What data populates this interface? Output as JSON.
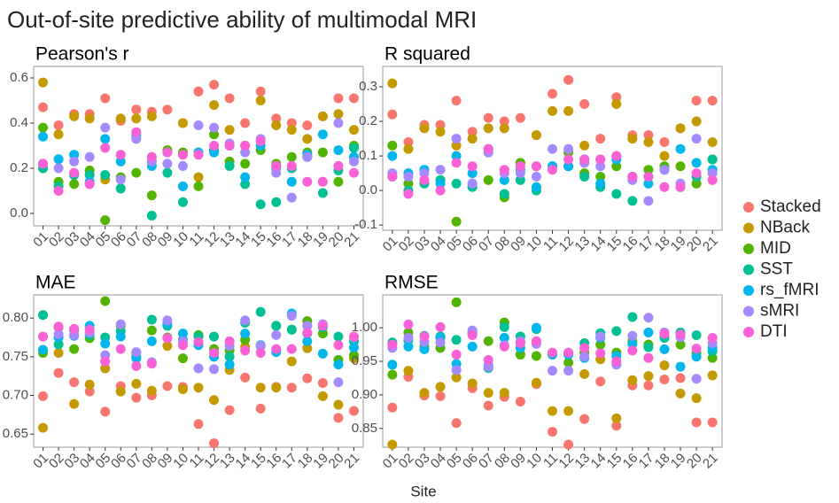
{
  "title": "Out-of-site predictive ability of multimodal MRI",
  "xlabel": "Site",
  "chart_data": [
    {
      "type": "scatter",
      "title": "Pearson's r",
      "categories": [
        "01",
        "02",
        "03",
        "04",
        "05",
        "06",
        "07",
        "08",
        "09",
        "10",
        "11",
        "12",
        "13",
        "14",
        "15",
        "16",
        "17",
        "18",
        "19",
        "20",
        "21"
      ],
      "ylim": [
        -0.055,
        0.651
      ],
      "yticks": [
        {
          "value": 0,
          "label": "0.0"
        },
        0.2,
        0.4,
        0.6
      ],
      "series": [
        {
          "name": "Stacked",
          "color": "#f8766d",
          "values": [
            0.47,
            0.39,
            0.44,
            0.44,
            0.51,
            0.41,
            0.46,
            0.45,
            0.46,
            0.4,
            0.54,
            0.57,
            0.51,
            0.4,
            0.54,
            0.42,
            0.4,
            0.39,
            0.43,
            0.51,
            0.51
          ]
        },
        {
          "name": "NBack",
          "color": "#c49a00",
          "values": [
            0.58,
            0.35,
            0.43,
            0.42,
            0.15,
            0.42,
            0.42,
            0.43,
            0.28,
            0.4,
            0.16,
            0.48,
            0.37,
            0.3,
            0.5,
            0.39,
            0.37,
            0.33,
            0.43,
            0.44,
            0.37
          ]
        },
        {
          "name": "MID",
          "color": "#53b400",
          "values": [
            0.38,
            0.14,
            0.13,
            0.19,
            -0.03,
            0.16,
            0.18,
            0.08,
            0.28,
            0.27,
            0.12,
            0.35,
            0.23,
            0.22,
            0.28,
            0.22,
            0.25,
            0.27,
            0.27,
            0.14,
            0.3
          ]
        },
        {
          "name": "SST",
          "color": "#00c094",
          "values": [
            0.2,
            0.12,
            0.17,
            0.17,
            0.17,
            0.11,
            0.34,
            -0.01,
            0.18,
            0.05,
            0.27,
            0.28,
            0.21,
            0.13,
            0.04,
            0.05,
            0.2,
            0.25,
            0.09,
            0.19,
            0.29
          ]
        },
        {
          "name": "rs_fMRI",
          "color": "#00b6eb",
          "values": [
            0.34,
            0.24,
            0.26,
            0.14,
            0.33,
            0.23,
            0.35,
            0.21,
            0.27,
            0.12,
            0.27,
            0.27,
            0.3,
            0.16,
            0.3,
            0.2,
            0.14,
            0.26,
            0.35,
            0.28,
            0.25
          ]
        },
        {
          "name": "sMRI",
          "color": "#a58aff",
          "values": [
            0.22,
            0.2,
            0.23,
            0.25,
            0.38,
            0.15,
            0.33,
            0.23,
            0.22,
            0.21,
            0.39,
            0.38,
            0.31,
            0.27,
            0.33,
            0.18,
            0.07,
            0.25,
            0.14,
            0.4,
            0.23
          ]
        },
        {
          "name": "DTI",
          "color": "#fb61d7",
          "values": [
            0.22,
            0.1,
            0.18,
            0.13,
            0.29,
            0.26,
            0.36,
            0.25,
            0.27,
            0.26,
            0.26,
            0.3,
            0.3,
            0.3,
            0.32,
            0.21,
            0.21,
            0.14,
            0.14,
            0.21,
            0.18
          ]
        }
      ]
    },
    {
      "type": "scatter",
      "title": "R squared",
      "categories": [
        "01",
        "02",
        "03",
        "04",
        "05",
        "06",
        "07",
        "08",
        "09",
        "10",
        "11",
        "12",
        "13",
        "14",
        "15",
        "16",
        "17",
        "18",
        "19",
        "20",
        "21"
      ],
      "ylim": [
        -0.115,
        0.359
      ],
      "yticks": [
        -0.1,
        {
          "value": 0,
          "label": "0.0"
        },
        0.1,
        0.2,
        0.3
      ],
      "series": [
        {
          "name": "Stacked",
          "color": "#f8766d",
          "values": [
            0.22,
            0.14,
            0.19,
            0.19,
            0.26,
            0.17,
            0.21,
            0.2,
            0.21,
            0.16,
            0.28,
            0.32,
            0.25,
            0.15,
            0.27,
            0.16,
            0.16,
            0.14,
            0.18,
            0.26,
            0.26
          ]
        },
        {
          "name": "NBack",
          "color": "#c49a00",
          "values": [
            0.31,
            0.12,
            0.18,
            0.17,
            0.13,
            0.15,
            0.18,
            0.18,
            0.08,
            0.16,
            0.23,
            0.23,
            0.13,
            0.09,
            0.25,
            0.15,
            0.14,
            0.1,
            0.18,
            0.2,
            0.14
          ]
        },
        {
          "name": "MID",
          "color": "#53b400",
          "values": [
            0.13,
            0.02,
            0.03,
            0.03,
            -0.09,
            0.02,
            0.03,
            -0.02,
            0.08,
            0.07,
            0.07,
            0.11,
            0.05,
            0.04,
            0.07,
            0.04,
            0.06,
            0.07,
            0.07,
            0.02,
            0.09
          ]
        },
        {
          "name": "SST",
          "color": "#00c094",
          "values": [
            0.04,
            0.0,
            0.02,
            0.03,
            0.02,
            0.01,
            0.11,
            -0.01,
            0.03,
            0.0,
            0.07,
            0.07,
            0.04,
            0.01,
            -0.01,
            -0.03,
            0.04,
            0.06,
            0.01,
            0.04,
            0.09
          ]
        },
        {
          "name": "rs_fMRI",
          "color": "#00b6eb",
          "values": [
            0.1,
            0.05,
            0.06,
            0.02,
            0.1,
            0.05,
            0.12,
            0.03,
            0.06,
            0.01,
            0.07,
            0.07,
            0.09,
            0.02,
            0.09,
            0.04,
            0.02,
            0.06,
            0.12,
            0.08,
            0.06
          ]
        },
        {
          "name": "sMRI",
          "color": "#a58aff",
          "values": [
            0.05,
            0.04,
            0.05,
            0.06,
            0.15,
            0.02,
            0.11,
            0.05,
            0.05,
            0.04,
            0.12,
            0.12,
            0.08,
            0.07,
            0.1,
            0.03,
            -0.03,
            0.06,
            0.02,
            0.15,
            0.05
          ]
        },
        {
          "name": "DTI",
          "color": "#fb61d7",
          "values": [
            0.04,
            -0.01,
            0.03,
            0.0,
            0.08,
            0.07,
            0.12,
            0.06,
            0.07,
            0.07,
            0.06,
            0.09,
            0.09,
            0.09,
            0.1,
            0.04,
            0.04,
            0.01,
            0.01,
            0.05,
            0.03
          ]
        }
      ]
    },
    {
      "type": "scatter",
      "title": "MAE",
      "categories": [
        "01",
        "02",
        "03",
        "04",
        "05",
        "06",
        "07",
        "08",
        "09",
        "10",
        "11",
        "12",
        "13",
        "14",
        "15",
        "16",
        "17",
        "18",
        "19",
        "20",
        "21"
      ],
      "ylim": [
        0.633,
        0.83
      ],
      "yticks": [
        0.65,
        {
          "value": 0.7,
          "label": "0.70"
        },
        0.75,
        {
          "value": 0.8,
          "label": "0.80"
        }
      ],
      "series": [
        {
          "name": "Stacked",
          "color": "#f8766d",
          "values": [
            0.699,
            0.729,
            0.717,
            0.705,
            0.679,
            0.712,
            0.697,
            0.7,
            0.712,
            0.711,
            0.663,
            0.638,
            0.681,
            0.723,
            0.683,
            0.711,
            0.71,
            0.722,
            0.716,
            0.671,
            0.68
          ]
        },
        {
          "name": "NBack",
          "color": "#c49a00",
          "values": [
            0.658,
            0.755,
            0.689,
            0.714,
            0.735,
            0.705,
            0.715,
            0.706,
            0.764,
            0.708,
            0.71,
            0.694,
            0.733,
            0.763,
            0.71,
            0.71,
            0.744,
            0.761,
            0.699,
            0.688,
            0.748
          ]
        },
        {
          "name": "MID",
          "color": "#53b400",
          "values": [
            0.755,
            0.788,
            0.76,
            0.774,
            0.822,
            0.79,
            0.755,
            0.784,
            0.775,
            0.748,
            0.778,
            0.76,
            0.758,
            0.772,
            0.764,
            0.79,
            0.785,
            0.796,
            0.78,
            0.746,
            0.752
          ]
        },
        {
          "name": "SST",
          "color": "#00c094",
          "values": [
            0.804,
            0.766,
            0.784,
            0.778,
            0.775,
            0.783,
            0.75,
            0.798,
            0.79,
            0.772,
            0.776,
            0.776,
            0.75,
            0.794,
            0.808,
            0.79,
            0.785,
            0.78,
            0.788,
            0.776,
            0.77
          ]
        },
        {
          "name": "rs_fMRI",
          "color": "#00b6eb",
          "values": [
            0.759,
            0.775,
            0.777,
            0.79,
            0.767,
            0.776,
            0.748,
            0.77,
            0.793,
            0.78,
            0.765,
            0.75,
            0.74,
            0.78,
            0.765,
            0.756,
            0.806,
            0.77,
            0.754,
            0.74,
            0.762
          ]
        },
        {
          "name": "sMRI",
          "color": "#a58aff",
          "values": [
            0.776,
            0.779,
            0.778,
            0.781,
            0.752,
            0.792,
            0.756,
            0.743,
            0.797,
            0.77,
            0.735,
            0.734,
            0.764,
            0.797,
            0.764,
            0.778,
            0.803,
            0.79,
            0.792,
            0.717,
            0.775
          ]
        },
        {
          "name": "DTI",
          "color": "#fb61d7",
          "values": [
            0.776,
            0.789,
            0.786,
            0.785,
            0.744,
            0.76,
            0.738,
            0.741,
            0.774,
            0.765,
            0.769,
            0.755,
            0.77,
            0.758,
            0.755,
            0.76,
            0.76,
            0.781,
            0.79,
            0.765,
            0.776
          ]
        }
      ]
    },
    {
      "type": "scatter",
      "title": "RMSE",
      "categories": [
        "01",
        "02",
        "03",
        "04",
        "05",
        "06",
        "07",
        "08",
        "09",
        "10",
        "11",
        "12",
        "13",
        "14",
        "15",
        "16",
        "17",
        "18",
        "19",
        "20",
        "21"
      ],
      "ylim": [
        0.822,
        1.049
      ],
      "yticks": [
        0.85,
        {
          "value": 0.9,
          "label": "0.90"
        },
        0.95,
        {
          "value": 1,
          "label": "1.00"
        }
      ],
      "series": [
        {
          "name": "Stacked",
          "color": "#f8766d",
          "values": [
            0.881,
            0.927,
            0.899,
            0.898,
            0.858,
            0.91,
            0.884,
            0.897,
            0.89,
            0.916,
            0.845,
            0.826,
            0.864,
            0.92,
            0.854,
            0.914,
            0.914,
            0.923,
            0.925,
            0.859,
            0.859
          ]
        },
        {
          "name": "NBack",
          "color": "#c49a00",
          "values": [
            0.826,
            0.936,
            0.903,
            0.912,
            0.926,
            0.917,
            0.903,
            0.903,
            0.96,
            0.918,
            0.876,
            0.876,
            0.931,
            0.953,
            0.865,
            0.922,
            0.928,
            0.944,
            0.902,
            0.895,
            0.929
          ]
        },
        {
          "name": "MID",
          "color": "#53b400",
          "values": [
            0.93,
            0.993,
            0.972,
            0.97,
            1.038,
            0.993,
            0.98,
            1.008,
            0.96,
            0.958,
            0.96,
            0.948,
            0.963,
            0.975,
            0.963,
            0.98,
            0.975,
            0.988,
            0.975,
            0.962,
            0.955
          ]
        },
        {
          "name": "SST",
          "color": "#00c094",
          "values": [
            0.978,
            0.981,
            0.988,
            0.987,
            0.982,
            0.992,
            0.94,
            1.001,
            0.987,
            0.998,
            0.962,
            0.962,
            0.977,
            0.992,
            0.995,
            1.016,
            0.971,
            0.985,
            0.993,
            0.989,
            0.965
          ]
        },
        {
          "name": "rs_fMRI",
          "color": "#00b6eb",
          "values": [
            0.945,
            0.972,
            0.968,
            0.985,
            0.946,
            0.972,
            0.944,
            0.985,
            0.97,
            1.0,
            0.96,
            0.96,
            0.955,
            0.985,
            0.958,
            0.976,
            0.993,
            0.968,
            0.942,
            0.957,
            0.97
          ]
        },
        {
          "name": "sMRI",
          "color": "#a58aff",
          "values": [
            0.97,
            0.985,
            0.979,
            0.978,
            0.937,
            0.996,
            0.942,
            0.974,
            0.98,
            0.976,
            0.936,
            0.936,
            0.957,
            0.987,
            0.945,
            0.988,
            1.015,
            0.993,
            0.986,
            0.924,
            0.977
          ]
        },
        {
          "name": "DTI",
          "color": "#fb61d7",
          "values": [
            0.975,
            1.005,
            0.987,
            1.001,
            0.96,
            0.989,
            0.952,
            0.972,
            0.977,
            0.98,
            0.963,
            0.963,
            0.97,
            0.962,
            0.95,
            0.966,
            0.955,
            0.991,
            0.99,
            0.969,
            0.985
          ]
        }
      ]
    }
  ]
}
